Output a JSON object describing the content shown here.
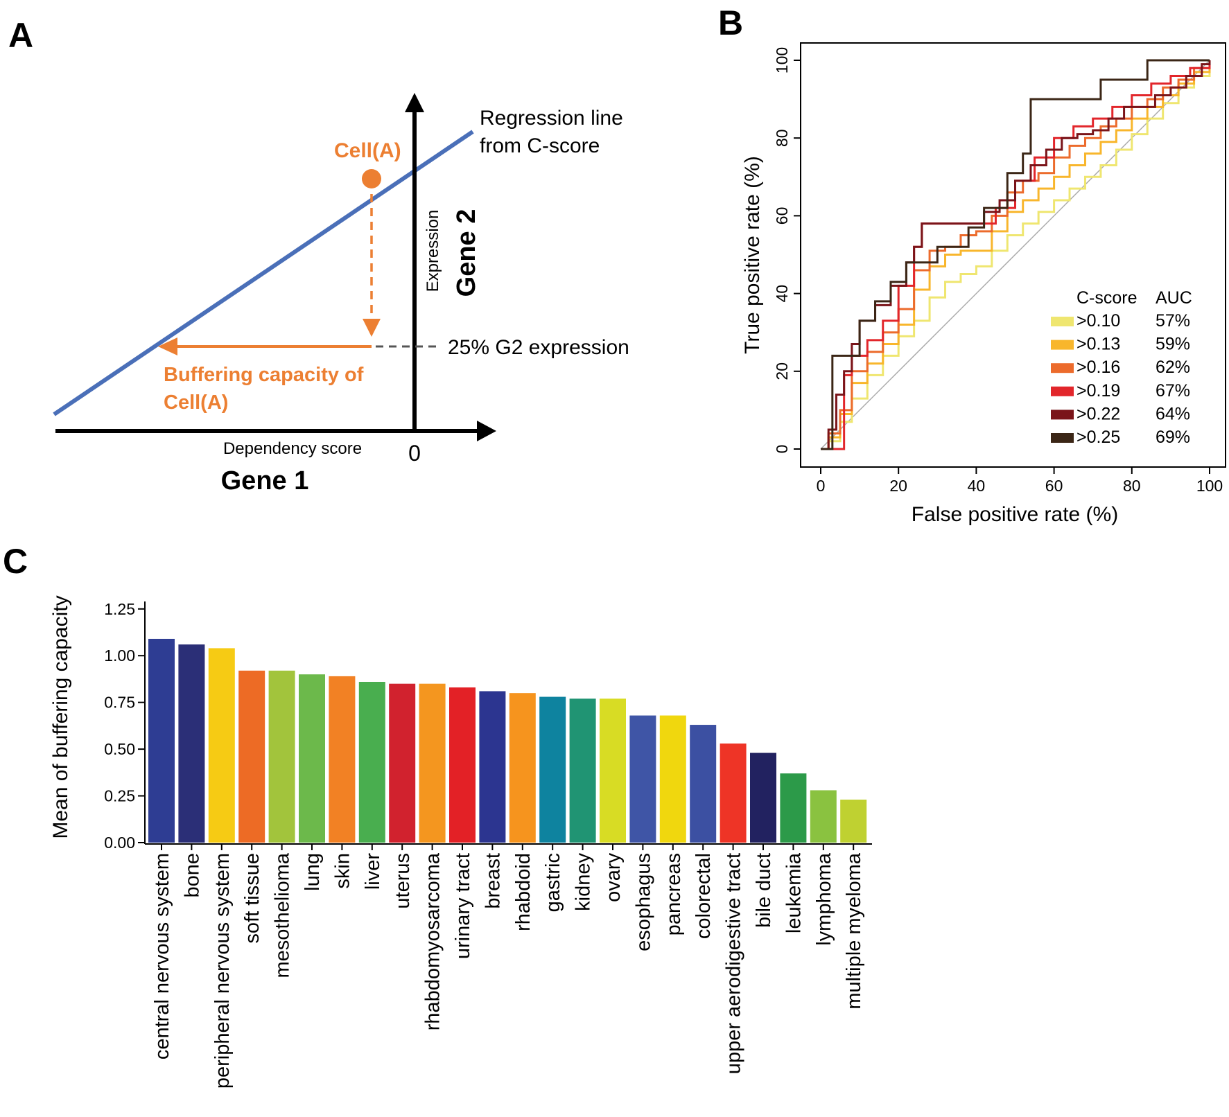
{
  "panels": {
    "a": "A",
    "b": "B",
    "c": "C"
  },
  "colors": {
    "regression": "#4a6fb8",
    "orange": "#ec7f32",
    "black": "#000000",
    "diagonal": "#aaaaaa"
  },
  "panel_a": {
    "regression_label_1": "Regression line",
    "regression_label_2": "from C-score",
    "cell_label": "Cell(A)",
    "y_axis_small": "Expression",
    "y_axis_big": "Gene 2",
    "x_axis_small": "Dependency score",
    "x_axis_big": "Gene 1",
    "origin": "0",
    "threshold_label": "25% G2 expression",
    "buffer_label_1": "Buffering capacity of",
    "buffer_label_2": "Cell(A)"
  },
  "chart_data": [
    {
      "type": "line",
      "title": "",
      "xlabel": "False positive rate (%)",
      "ylabel": "True positive rate (%)",
      "xlim": [
        0,
        100
      ],
      "ylim": [
        0,
        100
      ],
      "xticks": [
        "0",
        "20",
        "40",
        "60",
        "80",
        "100"
      ],
      "yticks": [
        "0",
        "20",
        "40",
        "60",
        "80",
        "100"
      ],
      "legend_header": {
        "name": "C-score",
        "auc": "AUC"
      },
      "legend_position": "bottom-right",
      "series": [
        {
          "name": ">0.10",
          "auc": "57%",
          "color": "#efe670",
          "x": [
            0,
            2,
            5,
            8,
            12,
            16,
            20,
            24,
            28,
            32,
            36,
            40,
            44,
            48,
            52,
            56,
            60,
            64,
            68,
            72,
            76,
            80,
            84,
            88,
            92,
            96,
            100
          ],
          "y": [
            0,
            2,
            7,
            13,
            19,
            24,
            29,
            33,
            39,
            43,
            45,
            47,
            51,
            55,
            58,
            61,
            64,
            67,
            70,
            73,
            77,
            81,
            85,
            89,
            93,
            96,
            100
          ]
        },
        {
          "name": ">0.13",
          "auc": "59%",
          "color": "#f8b62c",
          "x": [
            0,
            2,
            5,
            8,
            12,
            16,
            20,
            24,
            28,
            32,
            36,
            40,
            44,
            48,
            52,
            56,
            60,
            64,
            68,
            72,
            76,
            80,
            84,
            88,
            92,
            96,
            100
          ],
          "y": [
            0,
            3,
            9,
            17,
            22,
            27,
            32,
            41,
            47,
            50,
            51,
            51,
            56,
            61,
            64,
            67,
            70,
            73,
            76,
            79,
            82,
            85,
            88,
            91,
            94,
            97,
            100
          ]
        },
        {
          "name": ">0.16",
          "auc": "62%",
          "color": "#ec6b2c",
          "x": [
            0,
            2,
            5,
            8,
            12,
            16,
            20,
            24,
            28,
            32,
            36,
            40,
            44,
            48,
            52,
            56,
            60,
            64,
            68,
            72,
            76,
            80,
            84,
            88,
            92,
            96,
            100
          ],
          "y": [
            0,
            4,
            10,
            20,
            25,
            30,
            36,
            46,
            51,
            52,
            55,
            56,
            60,
            66,
            69,
            71,
            75,
            78,
            80,
            83,
            85,
            88,
            90,
            93,
            95,
            98,
            100
          ]
        },
        {
          "name": ">0.19",
          "auc": "67%",
          "color": "#e2262b",
          "x": [
            0,
            3,
            6,
            8,
            12,
            16,
            20,
            24,
            26,
            30,
            35,
            40,
            45,
            50,
            55,
            60,
            65,
            70,
            75,
            80,
            85,
            90,
            95,
            100
          ],
          "y": [
            0,
            0,
            19,
            24,
            28,
            33,
            42,
            52,
            58,
            58,
            58,
            58,
            62,
            69,
            75,
            80,
            83,
            85,
            88,
            91,
            94,
            96,
            98,
            100
          ]
        },
        {
          "name": ">0.22",
          "auc": "64%",
          "color": "#7a1419",
          "x": [
            0,
            2,
            4,
            6,
            8,
            10,
            14,
            18,
            22,
            24,
            26,
            30,
            34,
            38,
            42,
            46,
            50,
            54,
            58,
            62,
            66,
            70,
            74,
            78,
            82,
            86,
            90,
            94,
            98,
            100
          ],
          "y": [
            0,
            5,
            14,
            20,
            27,
            33,
            37,
            42,
            48,
            52,
            58,
            58,
            58,
            58,
            61,
            64,
            69,
            73,
            77,
            80,
            81,
            82,
            85,
            88,
            88,
            91,
            93,
            96,
            99,
            100
          ]
        },
        {
          "name": ">0.25",
          "auc": "69%",
          "color": "#3b2616",
          "x": [
            0,
            3,
            8,
            10,
            14,
            18,
            22,
            26,
            30,
            34,
            38,
            42,
            45,
            48,
            52,
            54,
            58,
            65,
            70,
            72,
            76,
            80,
            84,
            88,
            92,
            96,
            100
          ],
          "y": [
            0,
            24,
            24,
            33,
            38,
            43,
            48,
            48,
            52,
            52,
            57,
            62,
            62,
            71,
            76,
            90,
            90,
            90,
            90,
            95,
            95,
            95,
            100,
            100,
            100,
            100,
            100
          ]
        }
      ]
    },
    {
      "type": "bar",
      "title": "",
      "xlabel": "",
      "ylabel": "Mean of buffering capacity",
      "ylim": [
        0,
        1.29
      ],
      "yticks": [
        "0.00",
        "0.25",
        "0.50",
        "0.75",
        "1.00",
        "1.25"
      ],
      "categories": [
        "central nervous system",
        "bone",
        "peripheral nervous system",
        "soft tissue",
        "mesothelioma",
        "lung",
        "skin",
        "liver",
        "uterus",
        "rhabdomyosarcoma",
        "urinary tract",
        "breast",
        "rhabdoid",
        "gastric",
        "kidney",
        "ovary",
        "esophagus",
        "pancreas",
        "colorectal",
        "upper aerodigestive tract",
        "bile duct",
        "leukemia",
        "lymphoma",
        "multiple myeloma"
      ],
      "values": [
        1.09,
        1.06,
        1.04,
        0.92,
        0.92,
        0.9,
        0.89,
        0.86,
        0.85,
        0.85,
        0.83,
        0.81,
        0.8,
        0.78,
        0.77,
        0.77,
        0.68,
        0.68,
        0.63,
        0.53,
        0.48,
        0.37,
        0.28,
        0.23
      ],
      "colors": [
        "#2e3d93",
        "#2b2f77",
        "#f6cb14",
        "#ed6b25",
        "#a2c43c",
        "#6cb94b",
        "#f28124",
        "#49ae4f",
        "#d1222e",
        "#f4961f",
        "#e32126",
        "#2c3590",
        "#f6941e",
        "#0e839f",
        "#209473",
        "#d8dc24",
        "#3f55a6",
        "#f0d70e",
        "#3c50a2",
        "#ee3426",
        "#222260",
        "#2c9a49",
        "#8ac240",
        "#bfd131"
      ]
    }
  ]
}
